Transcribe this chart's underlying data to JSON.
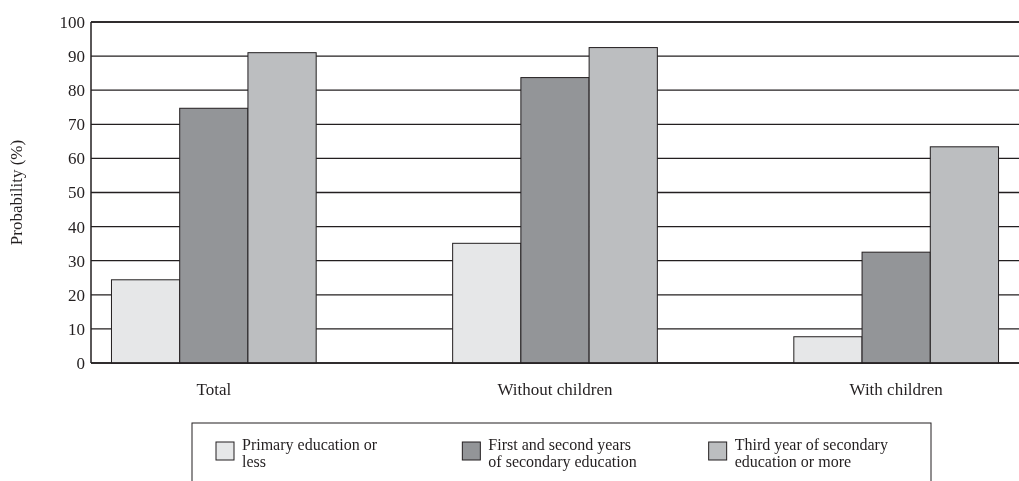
{
  "chart_data": {
    "type": "bar",
    "ylabel": "Probability (%)",
    "categories": [
      "Total",
      "Without children",
      "With children"
    ],
    "series": [
      {
        "name": "Primary education or less",
        "color": "#e6e7e8",
        "values": [
          24.4,
          35.1,
          7.7
        ]
      },
      {
        "name": "First and second years of secondary education",
        "color": "#939598",
        "values": [
          74.7,
          83.7,
          32.5
        ]
      },
      {
        "name": "Third year of secondary education or more",
        "color": "#bcbec0",
        "values": [
          91.0,
          92.5,
          63.4
        ]
      }
    ],
    "ylim": [
      0,
      100
    ],
    "yticks": [
      0,
      10,
      20,
      30,
      40,
      50,
      60,
      70,
      80,
      90,
      100
    ],
    "grid": "y",
    "legend": "bottom"
  }
}
